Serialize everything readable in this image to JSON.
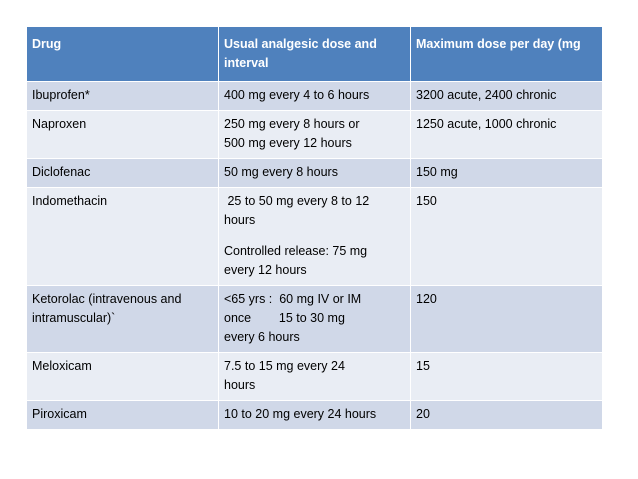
{
  "headers": [
    "Drug",
    "Usual analgesic dose and interval",
    "Maximum dose per day (mg"
  ],
  "rows": [
    {
      "drug": [
        "Ibuprofen*"
      ],
      "dose": [
        "400 mg every 4 to 6 hours"
      ],
      "max": [
        "3200 acute, 2400 chronic"
      ]
    },
    {
      "drug": [
        "Naproxen"
      ],
      "dose": [
        "250 mg every 8 hours or",
        "500 mg every 12 hours"
      ],
      "max": [
        "1250 acute, 1000 chronic"
      ]
    },
    {
      "drug": [
        "Diclofenac"
      ],
      "dose": [
        "50 mg every 8 hours"
      ],
      "max": [
        "150 mg"
      ]
    },
    {
      "drug": [
        "Indomethacin"
      ],
      "dose": [
        " 25 to 50 mg every 8 to 12",
        "hours",
        "",
        "Controlled release: 75 mg",
        "every 12 hours"
      ],
      "max": [
        "150"
      ]
    },
    {
      "drug": [
        "Ketorolac (intravenous and",
        "intramuscular)`"
      ],
      "dose": [
        "<65 yrs :  60 mg IV or IM",
        "once        15 to 30 mg",
        "every 6 hours"
      ],
      "max": [
        "120"
      ]
    },
    {
      "drug": [
        "Meloxicam"
      ],
      "dose": [
        "7.5 to 15 mg every 24",
        "hours"
      ],
      "max": [
        "15"
      ]
    },
    {
      "drug": [
        "Piroxicam"
      ],
      "dose": [
        "10 to 20 mg every 24 hours"
      ],
      "max": [
        "20"
      ]
    }
  ]
}
